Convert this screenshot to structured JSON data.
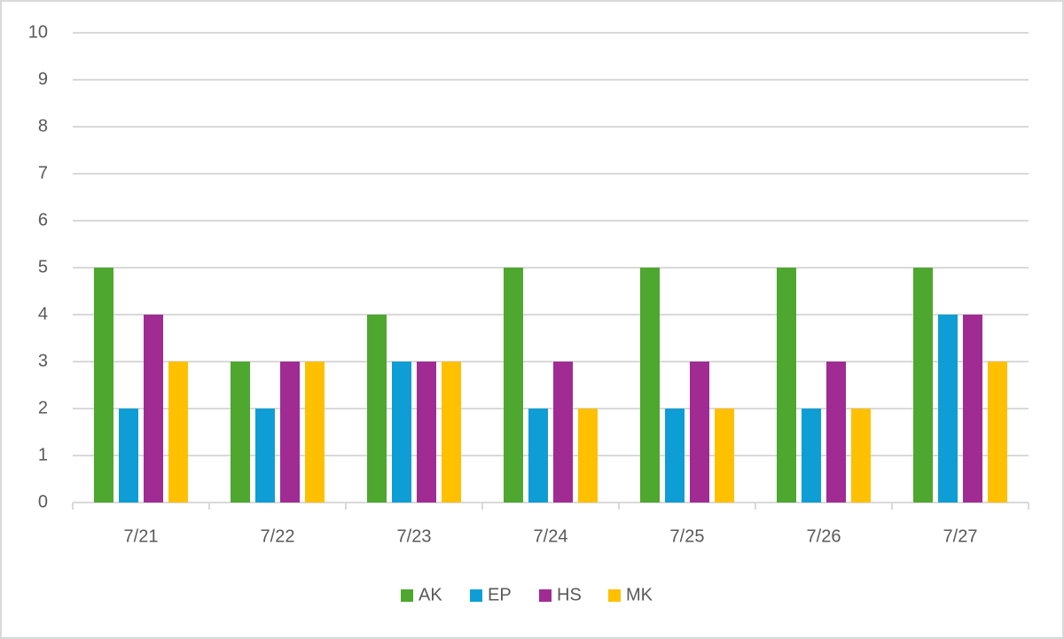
{
  "chart_data": {
    "type": "bar",
    "categories": [
      "7/21",
      "7/22",
      "7/23",
      "7/24",
      "7/25",
      "7/26",
      "7/27"
    ],
    "series": [
      {
        "name": "AK",
        "color": "#4ea72e",
        "values": [
          5,
          3,
          4,
          5,
          5,
          5,
          5
        ]
      },
      {
        "name": "EP",
        "color": "#0e9ed5",
        "values": [
          2,
          2,
          3,
          2,
          2,
          2,
          4
        ]
      },
      {
        "name": "HS",
        "color": "#a02b93",
        "values": [
          4,
          3,
          3,
          3,
          3,
          3,
          4
        ]
      },
      {
        "name": "MK",
        "color": "#ffc000",
        "values": [
          3,
          3,
          3,
          2,
          2,
          2,
          3
        ]
      }
    ],
    "ylim": [
      0,
      10
    ],
    "yticks": [
      0,
      1,
      2,
      3,
      4,
      5,
      6,
      7,
      8,
      9,
      10
    ],
    "grid": true,
    "legend": "bottom"
  }
}
